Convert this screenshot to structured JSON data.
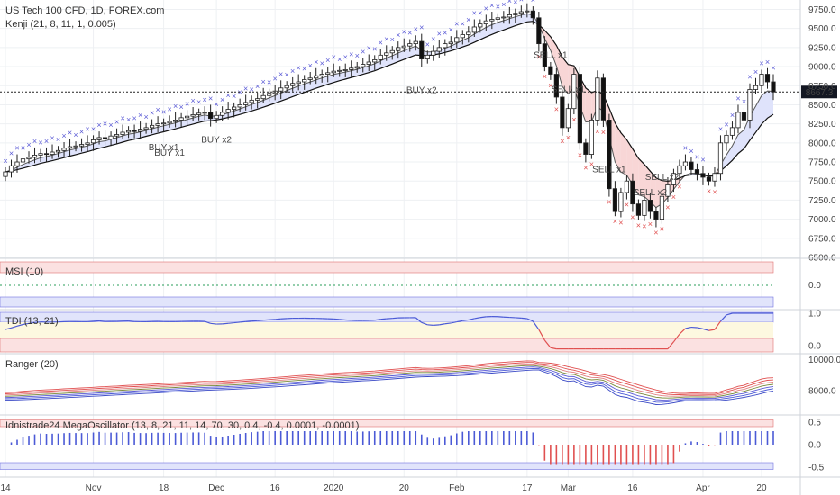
{
  "header": {
    "title": "US Tech 100 CFD, 1D, FOREX.com",
    "indicator": "Kenji (21, 8, 11, 1, 0.005)"
  },
  "colors": {
    "up": "#ffffff",
    "down": "#111111",
    "buy": "#5b5bd6",
    "sell": "#e05050",
    "band_blue": "#dfe3fb",
    "band_red": "#f8d6d6"
  },
  "chart_data": {
    "type": "candlestick",
    "price_axis": {
      "ticks": [
        "9750.0",
        "9500.0",
        "9250.0",
        "9000.0",
        "8750.0",
        "8500.0",
        "8250.0",
        "8000.0",
        "7750.0",
        "7500.0",
        "7250.0",
        "7000.0",
        "6750.0",
        "6500.0"
      ],
      "range": [
        6500,
        9850
      ]
    },
    "last_price": "8667.3",
    "last_price_value": 8667.3,
    "x_ticks": [
      "14",
      "Nov",
      "18",
      "Dec",
      "16",
      "2020",
      "20",
      "Feb",
      "17",
      "Mar",
      "16",
      "Apr",
      "20"
    ],
    "x_tick_index": [
      0,
      15,
      27,
      36,
      46,
      56,
      68,
      77,
      89,
      96,
      107,
      119,
      129
    ],
    "close": [
      7620,
      7700,
      7750,
      7790,
      7810,
      7840,
      7860,
      7850,
      7880,
      7900,
      7930,
      7950,
      7960,
      7980,
      8000,
      8040,
      8070,
      8050,
      8090,
      8110,
      8140,
      8160,
      8150,
      8180,
      8200,
      8230,
      8250,
      8260,
      8280,
      8300,
      8330,
      8350,
      8370,
      8390,
      8400,
      8320,
      8360,
      8400,
      8440,
      8470,
      8500,
      8530,
      8560,
      8580,
      8620,
      8650,
      8680,
      8720,
      8750,
      8780,
      8800,
      8830,
      8850,
      8880,
      8900,
      8920,
      8940,
      8950,
      8960,
      8980,
      9000,
      9030,
      9060,
      9090,
      9150,
      9180,
      9210,
      9250,
      9270,
      9300,
      9330,
      9100,
      9150,
      9200,
      9250,
      9300,
      9320,
      9380,
      9420,
      9450,
      9520,
      9560,
      9600,
      9620,
      9640,
      9650,
      9680,
      9700,
      9720,
      9730,
      9640,
      9300,
      9000,
      8900,
      8600,
      8200,
      8450,
      8900,
      8000,
      7850,
      8300,
      8850,
      8300,
      7400,
      7100,
      7350,
      7500,
      7200,
      7050,
      7250,
      7100,
      7000,
      7300,
      7450,
      7600,
      7700,
      7750,
      7650,
      7600,
      7550,
      7500,
      7600,
      8000,
      8100,
      8200,
      8400,
      8300,
      8700,
      8750,
      8900,
      8800,
      8667.3
    ],
    "open": [
      7560,
      7620,
      7700,
      7750,
      7790,
      7810,
      7840,
      7860,
      7850,
      7880,
      7900,
      7930,
      7950,
      7960,
      7980,
      8000,
      8040,
      8070,
      8050,
      8090,
      8110,
      8140,
      8160,
      8150,
      8180,
      8200,
      8230,
      8250,
      8260,
      8280,
      8300,
      8330,
      8350,
      8370,
      8390,
      8400,
      8320,
      8360,
      8400,
      8440,
      8470,
      8500,
      8530,
      8560,
      8580,
      8620,
      8650,
      8680,
      8720,
      8750,
      8780,
      8800,
      8830,
      8850,
      8880,
      8900,
      8920,
      8940,
      8950,
      8960,
      8980,
      9000,
      9030,
      9060,
      9090,
      9150,
      9180,
      9210,
      9250,
      9270,
      9300,
      9330,
      9100,
      9150,
      9200,
      9250,
      9300,
      9320,
      9380,
      9420,
      9450,
      9520,
      9560,
      9600,
      9620,
      9640,
      9650,
      9680,
      9700,
      9720,
      9730,
      9640,
      9300,
      9000,
      8900,
      8600,
      8200,
      8450,
      8900,
      8000,
      7850,
      8300,
      8850,
      8300,
      7400,
      7100,
      7350,
      7500,
      7200,
      7050,
      7250,
      7100,
      7000,
      7300,
      7450,
      7600,
      7700,
      7750,
      7650,
      7600,
      7550,
      7500,
      7600,
      8000,
      8100,
      8200,
      8400,
      8300,
      8700,
      8750,
      8900,
      8800
    ],
    "signals": [
      {
        "text": "BUY x1",
        "kind": "buy",
        "index": 27
      },
      {
        "text": "BUY x1",
        "kind": "buy",
        "index": 28
      },
      {
        "text": "BUY x2",
        "kind": "buy",
        "index": 36
      },
      {
        "text": "BUY x2",
        "kind": "buy",
        "index": 71
      },
      {
        "text": "SELL x1",
        "kind": "sell",
        "index": 93
      },
      {
        "text": "SELL x1",
        "kind": "sell",
        "index": 96
      },
      {
        "text": "SELL x1",
        "kind": "sell",
        "index": 103
      },
      {
        "text": "SELL x2",
        "kind": "sell",
        "index": 112
      },
      {
        "text": "SELL x2",
        "kind": "sell",
        "index": 110
      }
    ]
  },
  "panels": {
    "msi": {
      "title": "MSI (10)",
      "ticks": [
        "0.0"
      ]
    },
    "tdi": {
      "title": "TDI (13, 21)",
      "ticks": [
        "1.0",
        "0.0"
      ]
    },
    "ranger": {
      "title": "Ranger (20)",
      "ticks": [
        "10000.0",
        "8000.0"
      ]
    },
    "mega": {
      "title": "Idnistrade24 MegaOscillator (13, 8, 21, 11, 14, 70, 30, 0.4, -0.4, 0.0001, -0.0001)",
      "ticks": [
        "0.5",
        "0.0",
        "-0.5"
      ]
    }
  }
}
